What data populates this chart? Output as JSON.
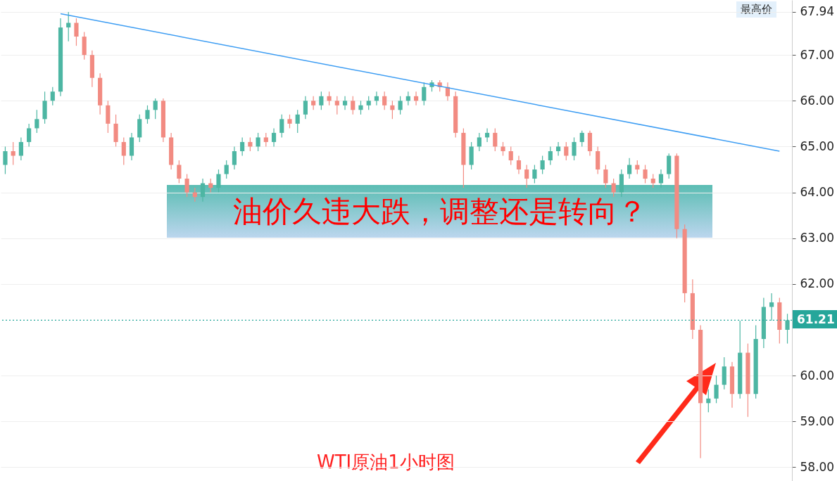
{
  "chart_data": {
    "type": "candlestick",
    "title": "油价久违大跌，调整还是转向？",
    "annotations": [
      "WTI原油1小时图",
      "最高价"
    ],
    "categories": [
      null,
      null,
      null,
      null,
      null,
      null,
      null,
      null,
      null,
      null,
      null,
      null,
      null,
      null,
      null,
      null,
      null,
      null,
      null,
      null,
      null,
      null,
      null,
      null,
      null,
      null,
      null,
      null,
      null,
      null,
      null,
      null,
      null,
      null,
      null,
      null,
      null,
      null,
      null,
      null,
      null,
      null,
      null,
      null,
      null,
      null,
      null,
      null,
      null,
      null,
      null,
      null,
      null,
      null,
      null,
      null,
      null,
      null,
      null,
      null,
      null,
      null,
      null,
      null,
      null,
      null,
      null,
      null,
      null,
      null,
      null,
      null,
      null,
      null,
      null,
      null,
      null,
      null,
      null,
      null,
      null,
      null,
      null,
      null,
      null,
      null,
      null,
      null,
      null,
      null,
      null,
      null,
      null,
      null,
      null,
      null,
      null,
      null,
      null,
      null
    ],
    "ohlc": [
      [
        64.6,
        65.0,
        64.4,
        64.9
      ],
      [
        64.9,
        65.1,
        64.6,
        64.8
      ],
      [
        64.8,
        65.2,
        64.7,
        65.1
      ],
      [
        65.1,
        65.5,
        65.0,
        65.4
      ],
      [
        65.4,
        65.8,
        65.3,
        65.6
      ],
      [
        65.6,
        66.2,
        65.5,
        66.0
      ],
      [
        66.0,
        66.3,
        65.9,
        66.2
      ],
      [
        66.2,
        67.8,
        66.1,
        67.6
      ],
      [
        67.6,
        67.94,
        67.3,
        67.7
      ],
      [
        67.7,
        67.8,
        67.2,
        67.4
      ],
      [
        67.4,
        67.5,
        66.9,
        67.0
      ],
      [
        67.0,
        67.1,
        66.3,
        66.5
      ],
      [
        66.5,
        66.6,
        65.7,
        65.9
      ],
      [
        65.9,
        66.0,
        65.3,
        65.5
      ],
      [
        65.5,
        65.7,
        65.0,
        65.1
      ],
      [
        65.1,
        65.2,
        64.6,
        64.8
      ],
      [
        64.8,
        65.3,
        64.7,
        65.2
      ],
      [
        65.2,
        65.7,
        65.1,
        65.6
      ],
      [
        65.6,
        65.9,
        65.5,
        65.8
      ],
      [
        65.8,
        66.05,
        65.6,
        66.0
      ],
      [
        66.0,
        66.05,
        65.1,
        65.2
      ],
      [
        65.2,
        65.3,
        64.5,
        64.6
      ],
      [
        64.6,
        64.7,
        64.2,
        64.3
      ],
      [
        64.3,
        64.4,
        63.9,
        64.0
      ],
      [
        64.0,
        64.1,
        63.8,
        63.9
      ],
      [
        63.9,
        64.3,
        63.8,
        64.2
      ],
      [
        64.2,
        64.3,
        64.0,
        64.1
      ],
      [
        64.1,
        64.5,
        64.0,
        64.4
      ],
      [
        64.4,
        64.7,
        64.3,
        64.6
      ],
      [
        64.6,
        65.0,
        64.5,
        64.9
      ],
      [
        64.9,
        65.2,
        64.8,
        65.1
      ],
      [
        65.1,
        65.2,
        64.9,
        65.0
      ],
      [
        65.0,
        65.3,
        64.9,
        65.2
      ],
      [
        65.2,
        65.3,
        65.0,
        65.1
      ],
      [
        65.1,
        65.4,
        65.0,
        65.3
      ],
      [
        65.3,
        65.7,
        65.2,
        65.6
      ],
      [
        65.6,
        65.7,
        65.4,
        65.5
      ],
      [
        65.5,
        65.8,
        65.3,
        65.7
      ],
      [
        65.7,
        66.1,
        65.6,
        66.0
      ],
      [
        66.0,
        66.1,
        65.8,
        65.9
      ],
      [
        65.9,
        66.2,
        65.8,
        66.1
      ],
      [
        66.1,
        66.2,
        65.9,
        66.0
      ],
      [
        66.0,
        66.1,
        65.7,
        65.9
      ],
      [
        65.9,
        66.1,
        65.8,
        66.0
      ],
      [
        66.0,
        66.1,
        65.7,
        65.8
      ],
      [
        65.8,
        66.0,
        65.7,
        65.9
      ],
      [
        65.9,
        66.1,
        65.8,
        66.0
      ],
      [
        66.0,
        66.2,
        65.9,
        66.1
      ],
      [
        66.1,
        66.2,
        65.8,
        65.9
      ],
      [
        65.9,
        66.0,
        65.6,
        65.8
      ],
      [
        65.8,
        66.1,
        65.7,
        66.0
      ],
      [
        66.0,
        66.2,
        65.9,
        66.1
      ],
      [
        66.1,
        66.2,
        65.9,
        66.0
      ],
      [
        66.0,
        66.4,
        65.9,
        66.3
      ],
      [
        66.3,
        66.45,
        66.2,
        66.4
      ],
      [
        66.4,
        66.45,
        66.2,
        66.3
      ],
      [
        66.3,
        66.4,
        66.0,
        66.1
      ],
      [
        66.1,
        66.2,
        65.2,
        65.3
      ],
      [
        65.3,
        65.4,
        64.1,
        64.6
      ],
      [
        64.6,
        65.1,
        64.5,
        65.0
      ],
      [
        65.0,
        65.3,
        64.9,
        65.2
      ],
      [
        65.2,
        65.4,
        65.1,
        65.3
      ],
      [
        65.3,
        65.4,
        64.9,
        65.0
      ],
      [
        65.0,
        65.1,
        64.8,
        64.9
      ],
      [
        64.9,
        65.0,
        64.6,
        64.7
      ],
      [
        64.7,
        64.8,
        64.4,
        64.5
      ],
      [
        64.5,
        64.6,
        64.1,
        64.3
      ],
      [
        64.3,
        64.6,
        64.2,
        64.5
      ],
      [
        64.5,
        64.8,
        64.4,
        64.7
      ],
      [
        64.7,
        65.0,
        64.6,
        64.9
      ],
      [
        64.9,
        65.1,
        64.8,
        65.0
      ],
      [
        65.0,
        65.1,
        64.7,
        64.8
      ],
      [
        64.8,
        65.2,
        64.7,
        65.1
      ],
      [
        65.1,
        65.35,
        65.0,
        65.3
      ],
      [
        65.3,
        65.35,
        64.8,
        64.9
      ],
      [
        64.9,
        65.0,
        64.4,
        64.5
      ],
      [
        64.5,
        64.6,
        64.1,
        64.2
      ],
      [
        64.2,
        64.3,
        63.9,
        64.0
      ],
      [
        64.0,
        64.5,
        63.9,
        64.4
      ],
      [
        64.4,
        64.75,
        64.3,
        64.6
      ],
      [
        64.6,
        64.7,
        64.4,
        64.5
      ],
      [
        64.5,
        64.6,
        64.2,
        64.3
      ],
      [
        64.3,
        64.4,
        64.1,
        64.2
      ],
      [
        64.2,
        64.5,
        64.1,
        64.4
      ],
      [
        64.4,
        64.85,
        64.3,
        64.8
      ],
      [
        64.8,
        64.85,
        63.0,
        63.2
      ],
      [
        63.2,
        63.3,
        61.6,
        61.8
      ],
      [
        61.8,
        62.1,
        60.8,
        61.0
      ],
      [
        61.0,
        61.1,
        58.2,
        59.4
      ],
      [
        59.4,
        59.7,
        59.2,
        59.5
      ],
      [
        59.5,
        60.0,
        59.4,
        59.8
      ],
      [
        59.8,
        60.4,
        59.7,
        60.2
      ],
      [
        60.2,
        60.3,
        59.3,
        59.6
      ],
      [
        59.6,
        61.2,
        59.5,
        60.5
      ],
      [
        60.5,
        60.7,
        59.1,
        59.6
      ],
      [
        59.6,
        61.1,
        59.5,
        60.8
      ],
      [
        60.8,
        61.7,
        60.6,
        61.5
      ],
      [
        61.5,
        61.8,
        61.2,
        61.6
      ],
      [
        61.6,
        61.7,
        60.7,
        61.0
      ],
      [
        61.0,
        61.35,
        60.7,
        61.21
      ]
    ],
    "colors": [
      "#4db6a3",
      "#f28b82",
      "#4db6a3",
      "#4db6a3",
      "#4db6a3",
      "#4db6a3",
      "#4db6a3",
      "#4db6a3",
      "#4db6a3",
      "#f28b82",
      "#f28b82",
      "#f28b82",
      "#f28b82",
      "#f28b82",
      "#f28b82",
      "#f28b82",
      "#4db6a3",
      "#4db6a3",
      "#4db6a3",
      "#4db6a3",
      "#f28b82",
      "#f28b82",
      "#f28b82",
      "#f28b82",
      "#f28b82",
      "#4db6a3",
      "#f28b82",
      "#4db6a3",
      "#4db6a3",
      "#4db6a3",
      "#4db6a3",
      "#f28b82",
      "#4db6a3",
      "#f28b82",
      "#4db6a3",
      "#4db6a3",
      "#f28b82",
      "#4db6a3",
      "#4db6a3",
      "#f28b82",
      "#4db6a3",
      "#f28b82",
      "#f28b82",
      "#4db6a3",
      "#f28b82",
      "#4db6a3",
      "#4db6a3",
      "#4db6a3",
      "#f28b82",
      "#f28b82",
      "#4db6a3",
      "#4db6a3",
      "#f28b82",
      "#4db6a3",
      "#4db6a3",
      "#f28b82",
      "#f28b82",
      "#f28b82",
      "#f28b82",
      "#4db6a3",
      "#4db6a3",
      "#4db6a3",
      "#f28b82",
      "#f28b82",
      "#f28b82",
      "#f28b82",
      "#f28b82",
      "#4db6a3",
      "#4db6a3",
      "#4db6a3",
      "#4db6a3",
      "#f28b82",
      "#4db6a3",
      "#4db6a3",
      "#f28b82",
      "#f28b82",
      "#f28b82",
      "#f28b82",
      "#4db6a3",
      "#4db6a3",
      "#f28b82",
      "#f28b82",
      "#f28b82",
      "#4db6a3",
      "#4db6a3",
      "#f28b82",
      "#f28b82",
      "#f28b82",
      "#f28b82",
      "#4db6a3",
      "#4db6a3",
      "#4db6a3",
      "#f28b82",
      "#4db6a3",
      "#f28b82",
      "#4db6a3",
      "#4db6a3",
      "#4db6a3",
      "#f28b82",
      "#4db6a3"
    ],
    "series": [
      {
        "type": "line",
        "color": "#3d9df3",
        "values": [
          null,
          null,
          null,
          null,
          null,
          null,
          null,
          67.9,
          null,
          null,
          null,
          null,
          null,
          null,
          null,
          null,
          null,
          null,
          null,
          null,
          null,
          null,
          null,
          null,
          null,
          null,
          null,
          null,
          null,
          null,
          null,
          null,
          null,
          null,
          null,
          null,
          null,
          null,
          null,
          null,
          null,
          null,
          null,
          null,
          null,
          null,
          null,
          null,
          null,
          null,
          null,
          null,
          null,
          null,
          null,
          null,
          null,
          null,
          null,
          null,
          null,
          null,
          null,
          null,
          null,
          null,
          null,
          null,
          null,
          null,
          null,
          null,
          null,
          null,
          null,
          null,
          null,
          null,
          null,
          null,
          null,
          null,
          null,
          null,
          null,
          null,
          null,
          null,
          null,
          null,
          null,
          null,
          null,
          null,
          null,
          null,
          null,
          null,
          64.9,
          null
        ]
      }
    ],
    "ref_lines": [
      {
        "axis": "y",
        "value": 61.21,
        "label": "61.21",
        "color": "#26a69a",
        "line_style": "dotted"
      }
    ],
    "ylim": [
      57.7,
      68.2
    ],
    "yticks": [
      {
        "value": 58,
        "label": "58.00"
      },
      {
        "value": 59,
        "label": "59.00"
      },
      {
        "value": 60,
        "label": "60.00"
      },
      {
        "value": 62,
        "label": "62.00"
      },
      {
        "value": 63,
        "label": "63.00"
      },
      {
        "value": 64,
        "label": "64.00"
      },
      {
        "value": 65,
        "label": "65.00"
      },
      {
        "value": 66,
        "label": "66.00"
      },
      {
        "value": 67,
        "label": "67.00"
      },
      {
        "value": 67.94,
        "label": "67.94"
      }
    ],
    "grid": "y",
    "tick_labels": "y"
  }
}
